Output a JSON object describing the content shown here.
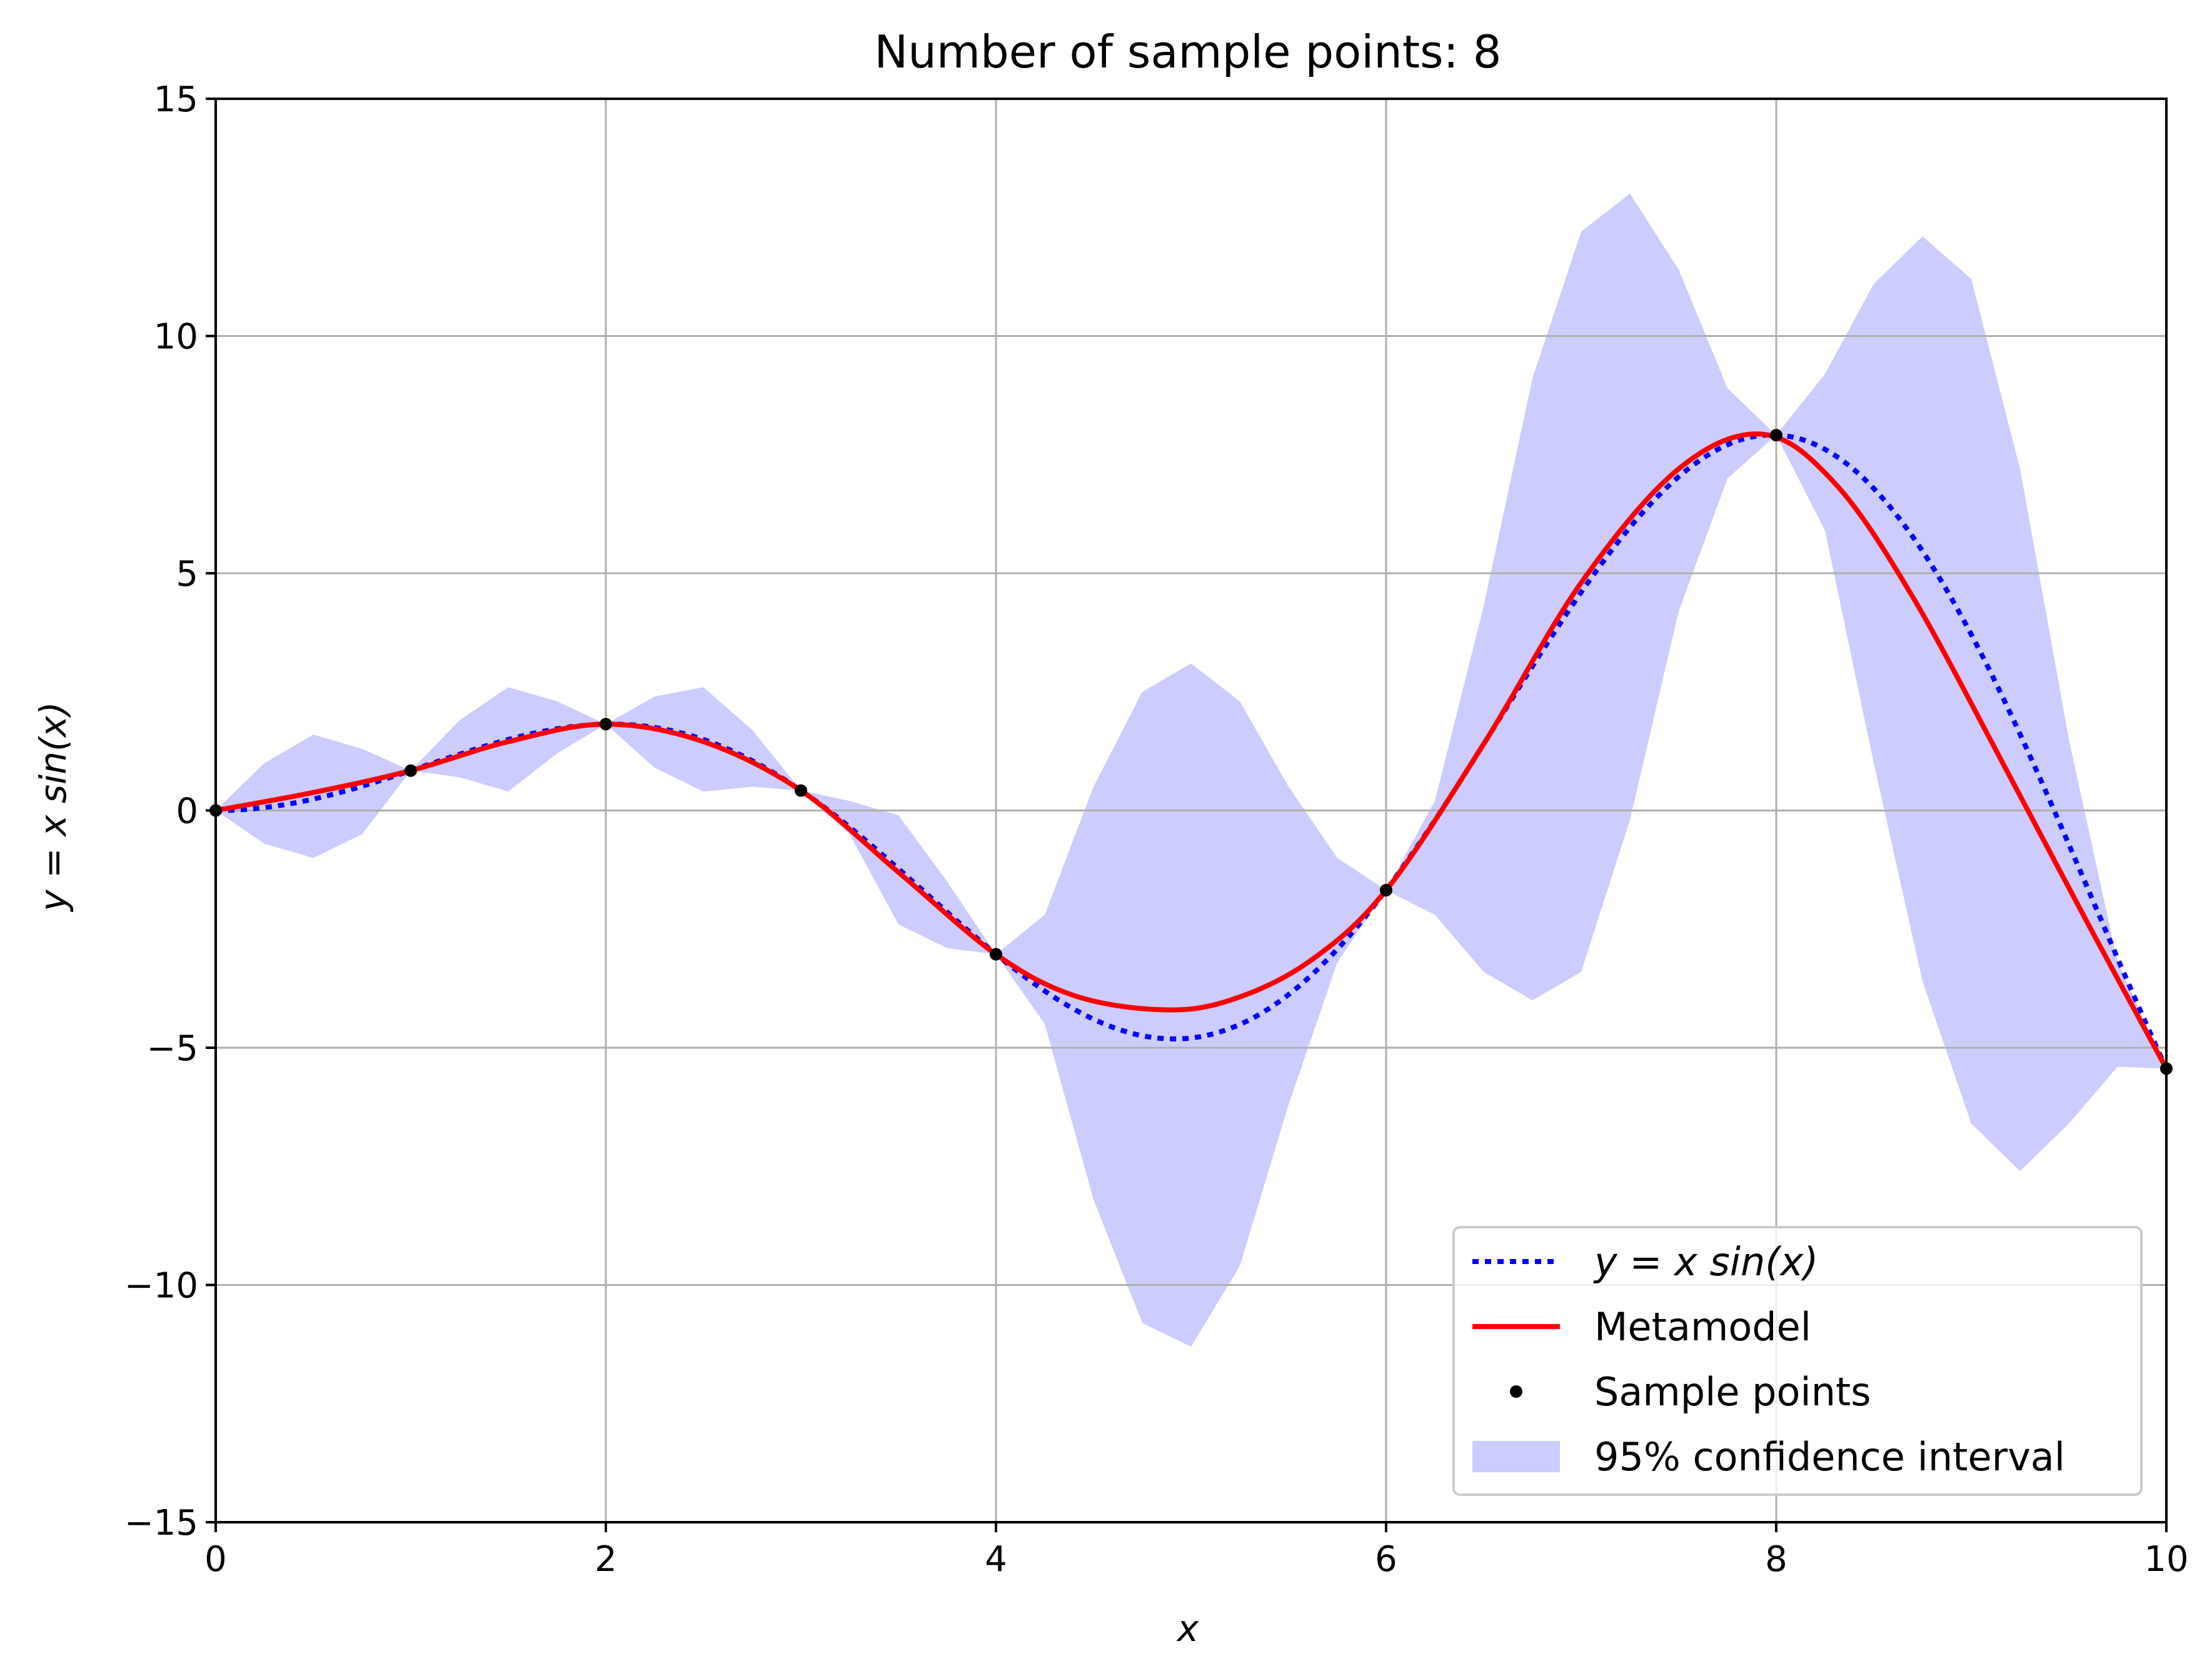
{
  "chart_data": {
    "type": "line",
    "title": "Number of sample points: 8",
    "xlabel": "x",
    "ylabel": "y = x sin(x)",
    "xlim": [
      0,
      10
    ],
    "ylim": [
      -15,
      15
    ],
    "xticks": [
      0,
      2,
      4,
      6,
      8,
      10
    ],
    "yticks": [
      -15,
      -10,
      -5,
      0,
      5,
      10,
      15
    ],
    "xtick_labels": [
      "0",
      "2",
      "4",
      "6",
      "8",
      "10"
    ],
    "ytick_labels": [
      "−15",
      "−10",
      "−5",
      "0",
      "5",
      "10",
      "15"
    ],
    "grid": true,
    "legend_position": "lower-right",
    "legend": {
      "true_function": "y = x sin(x)",
      "metamodel": "Metamodel",
      "samples": "Sample points",
      "ci": "95% confidence interval"
    },
    "colors": {
      "true_function": "#0000ff",
      "metamodel": "#ff0000",
      "samples": "#000000",
      "ci": "#ccccff",
      "grid": "#b0b0b0"
    },
    "sample_points": {
      "x": [
        0,
        1,
        2,
        3,
        4,
        6,
        8,
        10
      ],
      "y": [
        0,
        0.84,
        1.82,
        0.42,
        -3.03,
        -1.68,
        7.91,
        -5.44
      ]
    },
    "metamodel": {
      "x": [
        0,
        0.5,
        1,
        1.5,
        2,
        2.5,
        3,
        3.5,
        4,
        4.4,
        4.85,
        5.2,
        5.6,
        6,
        6.5,
        7,
        7.5,
        7.93,
        8.3,
        8.7,
        9.2,
        9.6,
        10
      ],
      "y": [
        0,
        0.38,
        0.84,
        1.45,
        1.82,
        1.45,
        0.42,
        -1.3,
        -3.03,
        -3.9,
        -4.2,
        -4.0,
        -3.2,
        -1.68,
        1.4,
        4.8,
        7.2,
        7.93,
        6.9,
        4.5,
        0.7,
        -2.4,
        -5.44
      ]
    },
    "ci": {
      "x": [
        0,
        0.25,
        0.5,
        0.75,
        1,
        1.25,
        1.5,
        1.75,
        2,
        2.25,
        2.5,
        2.75,
        3,
        3.25,
        3.5,
        3.75,
        4,
        4.25,
        4.5,
        4.75,
        5,
        5.25,
        5.5,
        5.75,
        6,
        6.25,
        6.5,
        6.75,
        7,
        7.25,
        7.5,
        7.75,
        8,
        8.25,
        8.5,
        8.75,
        9,
        9.25,
        9.5,
        9.75,
        10
      ],
      "upper": [
        0,
        1.0,
        1.6,
        1.3,
        0.84,
        1.9,
        2.6,
        2.3,
        1.82,
        2.4,
        2.6,
        1.7,
        0.42,
        0.2,
        -0.1,
        -1.5,
        -3.03,
        -2.2,
        0.5,
        2.5,
        3.1,
        2.3,
        0.5,
        -1.0,
        -1.68,
        0.2,
        4.3,
        9.1,
        12.2,
        13.0,
        11.4,
        8.9,
        7.91,
        9.2,
        11.1,
        12.1,
        11.2,
        7.2,
        1.5,
        -3.2,
        -5.44
      ],
      "lower": [
        0,
        -0.7,
        -1.0,
        -0.5,
        0.84,
        0.7,
        0.4,
        1.2,
        1.82,
        0.9,
        0.4,
        0.5,
        0.42,
        -0.5,
        -2.4,
        -2.9,
        -3.03,
        -4.5,
        -8.2,
        -10.8,
        -11.3,
        -9.6,
        -6.2,
        -3.2,
        -1.68,
        -2.2,
        -3.4,
        -4.0,
        -3.4,
        -0.2,
        4.2,
        7.0,
        7.91,
        5.9,
        1.0,
        -3.6,
        -6.6,
        -7.6,
        -6.6,
        -5.4,
        -5.44
      ]
    }
  }
}
